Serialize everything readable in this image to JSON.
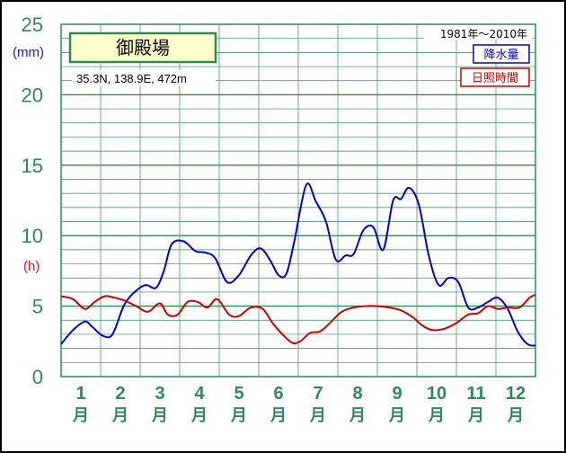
{
  "chart_data": {
    "type": "line",
    "title": "御殿場",
    "location": "35.3N, 138.9E, 472m",
    "period": "1981年〜2010年",
    "left_unit": "(mm)",
    "right_unit": "(h)",
    "x_labels": [
      {
        "num": "1",
        "kanji": "月"
      },
      {
        "num": "2",
        "kanji": "月"
      },
      {
        "num": "3",
        "kanji": "月"
      },
      {
        "num": "4",
        "kanji": "月"
      },
      {
        "num": "5",
        "kanji": "月"
      },
      {
        "num": "6",
        "kanji": "月"
      },
      {
        "num": "7",
        "kanji": "月"
      },
      {
        "num": "8",
        "kanji": "月"
      },
      {
        "num": "9",
        "kanji": "月"
      },
      {
        "num": "10",
        "kanji": "月"
      },
      {
        "num": "11",
        "kanji": "月"
      },
      {
        "num": "12",
        "kanji": "月"
      }
    ],
    "y_ticks": [
      "0",
      "5",
      "10",
      "15",
      "20",
      "25"
    ],
    "ylim": [
      0,
      25
    ],
    "x_range_months": [
      0.5,
      12.5
    ],
    "grid": true,
    "legend_position": "top-right",
    "series": [
      {
        "name": "降水量",
        "color": "#0000cc",
        "x": [
          0.5,
          0.8,
          1.1,
          1.3,
          1.55,
          1.8,
          2.1,
          2.4,
          2.65,
          2.9,
          3.1,
          3.3,
          3.6,
          3.9,
          4.15,
          4.4,
          4.7,
          5.0,
          5.3,
          5.55,
          5.8,
          6.0,
          6.2,
          6.4,
          6.7,
          6.95,
          7.2,
          7.45,
          7.7,
          7.9,
          8.15,
          8.4,
          8.65,
          8.9,
          9.1,
          9.3,
          9.55,
          9.8,
          10.05,
          10.3,
          10.55,
          10.8,
          11.05,
          11.3,
          11.55,
          11.8,
          12.05,
          12.3,
          12.5
        ],
        "values": [
          2.3,
          3.3,
          3.9,
          3.5,
          2.9,
          3.0,
          5.1,
          6.1,
          6.5,
          6.3,
          7.5,
          9.4,
          9.6,
          8.9,
          8.8,
          8.4,
          6.7,
          7.2,
          8.6,
          9.1,
          8.2,
          7.2,
          7.3,
          9.6,
          13.6,
          12.4,
          11.0,
          8.3,
          8.6,
          8.7,
          10.4,
          10.6,
          9.0,
          12.5,
          12.6,
          13.4,
          12.2,
          8.6,
          6.5,
          7.0,
          6.7,
          4.9,
          4.9,
          5.3,
          5.6,
          4.8,
          3.2,
          2.3,
          2.2
        ]
      },
      {
        "name": "日照時間",
        "color": "#cc0000",
        "x": [
          0.5,
          0.8,
          1.1,
          1.35,
          1.6,
          1.85,
          2.1,
          2.4,
          2.7,
          3.0,
          3.2,
          3.45,
          3.7,
          3.95,
          4.2,
          4.45,
          4.75,
          5.0,
          5.3,
          5.6,
          5.85,
          6.1,
          6.35,
          6.55,
          6.8,
          7.05,
          7.3,
          7.6,
          7.9,
          8.2,
          8.5,
          8.8,
          9.1,
          9.4,
          9.65,
          9.9,
          10.2,
          10.5,
          10.8,
          11.05,
          11.3,
          11.55,
          11.8,
          12.1,
          12.35,
          12.5
        ],
        "values": [
          5.7,
          5.5,
          4.8,
          5.3,
          5.7,
          5.6,
          5.4,
          5.0,
          4.6,
          5.2,
          4.4,
          4.4,
          5.3,
          5.3,
          4.9,
          5.5,
          4.4,
          4.3,
          4.9,
          4.8,
          3.8,
          3.0,
          2.4,
          2.5,
          3.1,
          3.2,
          3.8,
          4.6,
          4.9,
          5.0,
          5.0,
          4.9,
          4.7,
          4.2,
          3.6,
          3.3,
          3.4,
          3.8,
          4.4,
          4.5,
          5.0,
          4.8,
          4.9,
          4.9,
          5.6,
          5.8
        ]
      }
    ]
  }
}
